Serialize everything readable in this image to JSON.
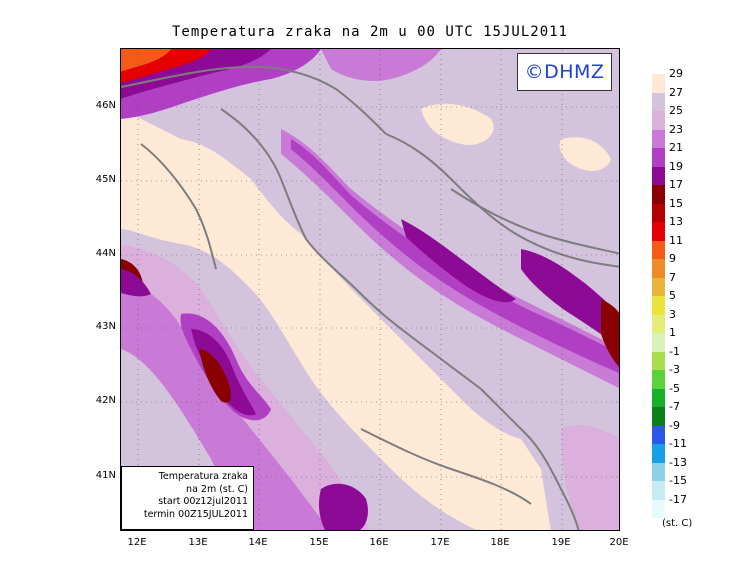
{
  "title": "Temperatura zraka na 2m u 00 UTC 15JUL2011",
  "watermark": "©DHMZ",
  "info_box": {
    "line1": "Temperatura zraka",
    "line2": "na 2m (st. C)",
    "line3": "start 00z12jul2011",
    "line4": "termin 00Z15JUL2011"
  },
  "axes": {
    "x_ticks": [
      "12E",
      "13E",
      "14E",
      "15E",
      "16E",
      "17E",
      "18E",
      "19E",
      "20E"
    ],
    "y_ticks": [
      "46N",
      "45N",
      "44N",
      "43N",
      "42N",
      "41N"
    ]
  },
  "legend": {
    "unit": "(st. C)",
    "labels": [
      "29",
      "27",
      "25",
      "23",
      "21",
      "19",
      "17",
      "15",
      "13",
      "11",
      "9",
      "7",
      "5",
      "3",
      "1",
      "-1",
      "-3",
      "-5",
      "-7",
      "-9",
      "-11",
      "-13",
      "-15",
      "-17"
    ],
    "colors": [
      "#fde9d5",
      "#d4c3dc",
      "#dcb0dc",
      "#c97ad6",
      "#b03fc4",
      "#8c0a96",
      "#8a0000",
      "#b30000",
      "#e40000",
      "#f55a17",
      "#ef8a28",
      "#eab538",
      "#ece33c",
      "#e5ec7a",
      "#d9f0b8",
      "#a9de4e",
      "#5ad33a",
      "#16b126",
      "#0b7f1c",
      "#2b58ea",
      "#16a0e8",
      "#8ed0e6",
      "#c6ebf3",
      "#e6fbfd"
    ]
  }
}
